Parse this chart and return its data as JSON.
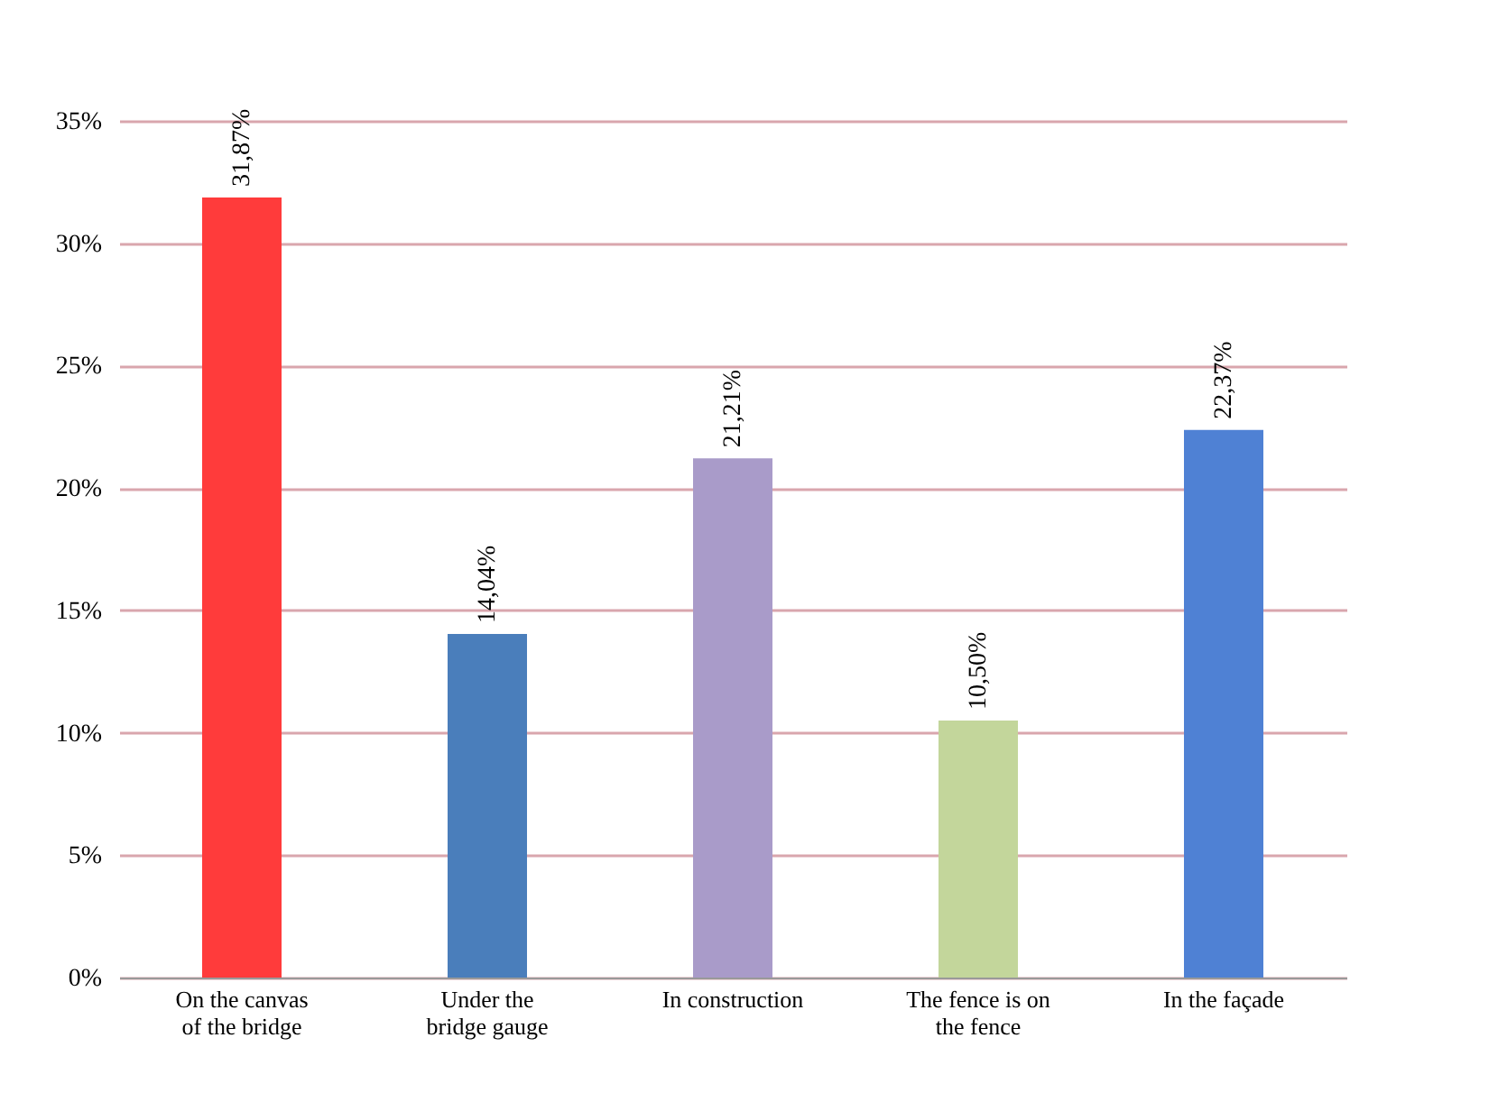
{
  "chart_data": {
    "type": "bar",
    "categories": [
      "On the canvas of the bridge",
      "Under the bridge gauge",
      "In construction",
      "The fence is on the fence",
      "In the façade"
    ],
    "values": [
      31.87,
      14.04,
      21.21,
      10.5,
      22.37
    ],
    "value_labels": [
      "31,87%",
      "14,04%",
      "21,21%",
      "10,50%",
      "22,37%"
    ],
    "colors": [
      "#ff3b3b",
      "#4a7ebb",
      "#a99bc9",
      "#c3d69b",
      "#4f81d4"
    ],
    "ylim": [
      0,
      35
    ],
    "yticks": [
      {
        "value": 0,
        "label": "0%"
      },
      {
        "value": 5,
        "label": "5%"
      },
      {
        "value": 10,
        "label": "10%"
      },
      {
        "value": 15,
        "label": "15%"
      },
      {
        "value": 20,
        "label": "20%"
      },
      {
        "value": 25,
        "label": "25%"
      },
      {
        "value": 30,
        "label": "30%"
      },
      {
        "value": 35,
        "label": "35%"
      }
    ],
    "grid": "y",
    "legend": false
  }
}
